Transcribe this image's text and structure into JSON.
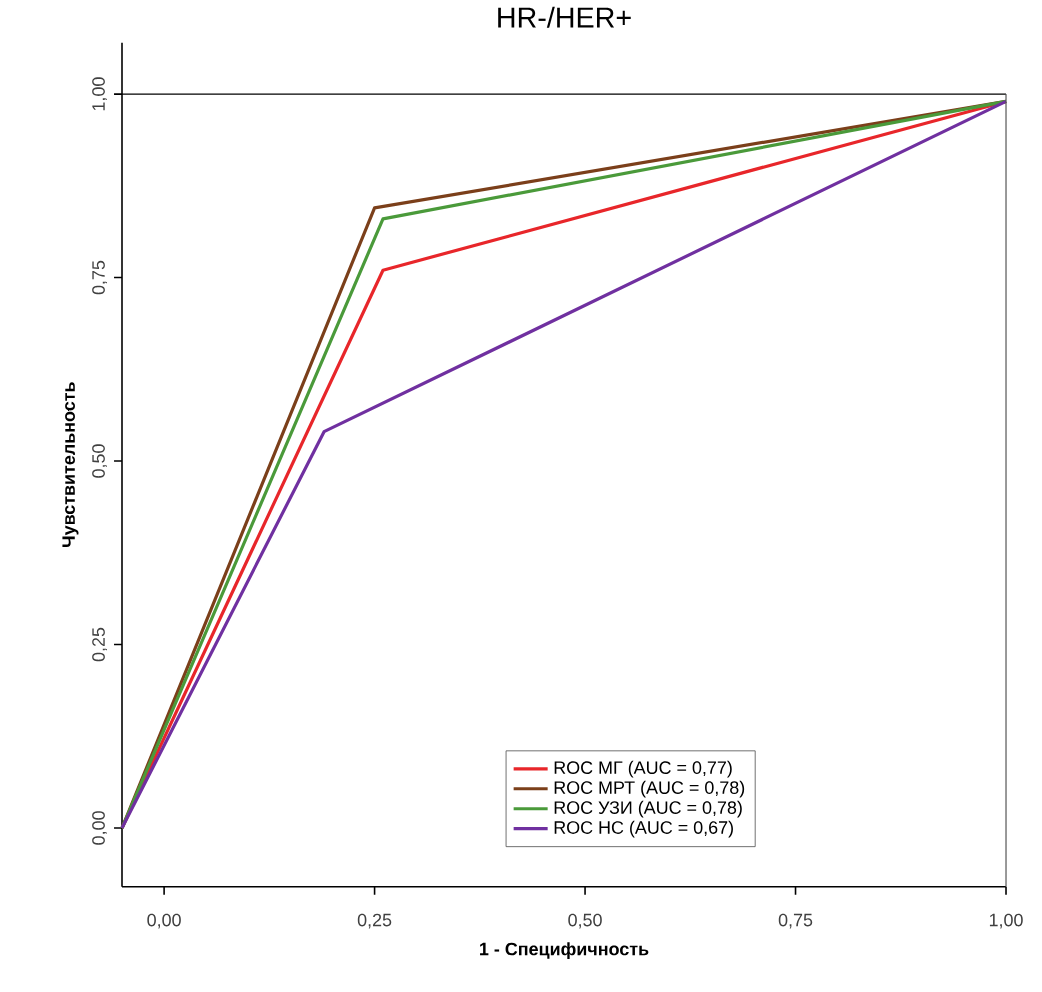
{
  "chart_data": {
    "type": "line",
    "title": "HR-/HER+",
    "xlabel": "1 - Специфичность",
    "ylabel": "Чувствительность",
    "xlim": [
      -0.05,
      1.0
    ],
    "ylim": [
      -0.08,
      1.07
    ],
    "xticks": [
      {
        "value": 0,
        "label": "0,00"
      },
      {
        "value": 0.25,
        "label": "0,25"
      },
      {
        "value": 0.5,
        "label": "0,50"
      },
      {
        "value": 0.75,
        "label": "0,75"
      },
      {
        "value": 1.0,
        "label": "1,00"
      }
    ],
    "yticks": [
      {
        "value": 0,
        "label": "0,00"
      },
      {
        "value": 0.25,
        "label": "0,25"
      },
      {
        "value": 0.5,
        "label": "0,50"
      },
      {
        "value": 0.75,
        "label": "0,75"
      },
      {
        "value": 1.0,
        "label": "1,00"
      }
    ],
    "series": [
      {
        "name": "ROC МГ (AUC = 0,77)",
        "color": "#e8262a",
        "x": [
          -0.05,
          0.26,
          1.0
        ],
        "values": [
          0,
          0.76,
          0.99
        ]
      },
      {
        "name": "ROC МРТ (AUC = 0,78)",
        "color": "#7b3f1a",
        "x": [
          -0.05,
          0.25,
          1.0
        ],
        "values": [
          0,
          0.845,
          0.99
        ]
      },
      {
        "name": "ROC УЗИ (AUC = 0,78)",
        "color": "#4a9a3a",
        "x": [
          -0.05,
          0.26,
          1.0
        ],
        "values": [
          0,
          0.83,
          0.99
        ]
      },
      {
        "name": "ROC НС (AUC = 0,67)",
        "color": "#7030a0",
        "x": [
          -0.05,
          0.19,
          1.0
        ],
        "values": [
          0,
          0.54,
          0.99
        ]
      }
    ],
    "ref_lines": [
      {
        "axis": "y",
        "value": 1.0,
        "color": "#000000"
      },
      {
        "axis": "x",
        "value": 1.0,
        "color": "#555555"
      }
    ],
    "legend": "bottom right",
    "grid": false
  }
}
